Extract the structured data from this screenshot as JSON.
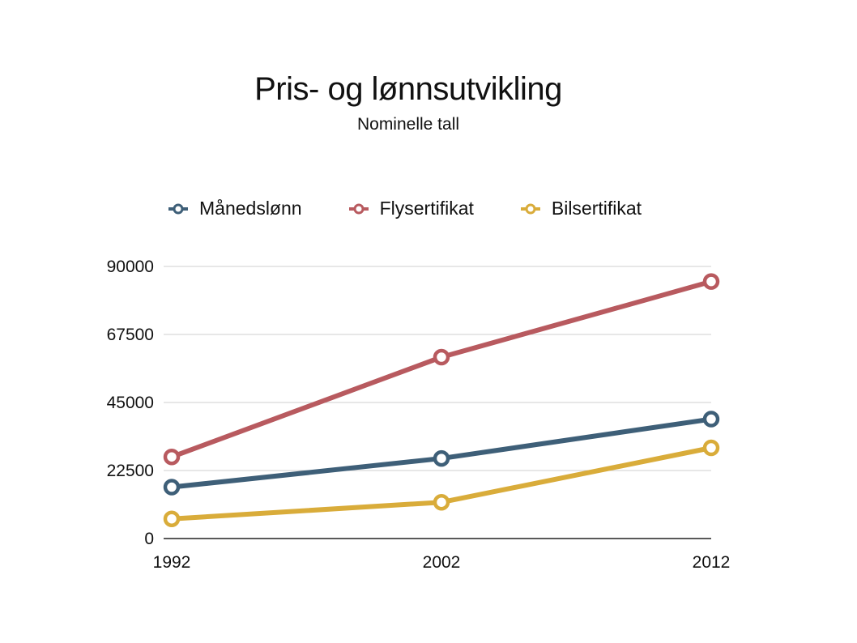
{
  "chart_data": {
    "type": "line",
    "title": "Pris- og lønnsutvikling",
    "subtitle": "Nominelle tall",
    "xlabel": "",
    "ylabel": "",
    "categories": [
      "1992",
      "2002",
      "2012"
    ],
    "yticks": [
      "0",
      "22500",
      "45000",
      "67500",
      "90000"
    ],
    "ylim": [
      0,
      90000
    ],
    "grid": true,
    "legend_position": "top",
    "series": [
      {
        "name": "Månedslønn",
        "color": "#3e5f78",
        "values": [
          17000,
          26500,
          39500
        ]
      },
      {
        "name": "Flysertifikat",
        "color": "#b85a5f",
        "values": [
          27000,
          60000,
          85000
        ]
      },
      {
        "name": "Bilsertifikat",
        "color": "#d9ac3a",
        "values": [
          6500,
          12000,
          30000
        ]
      }
    ]
  }
}
